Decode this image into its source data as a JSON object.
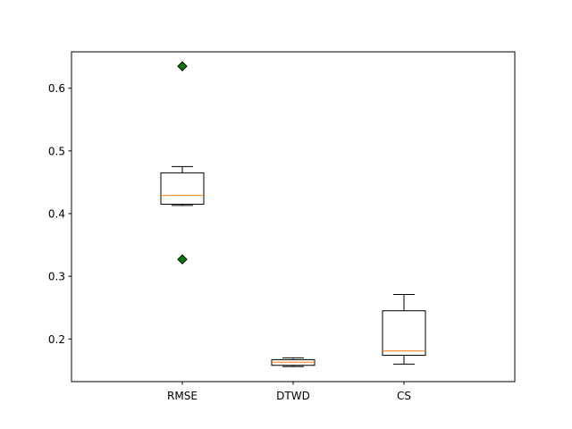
{
  "chart_data": {
    "type": "box",
    "categories": [
      "RMSE",
      "DTWD",
      "CS"
    ],
    "ylim": [
      0.132,
      0.658
    ],
    "yticks": [
      0.2,
      0.3,
      0.4,
      0.5,
      0.6
    ],
    "ytick_labels": [
      "0.2",
      "0.3",
      "0.4",
      "0.5",
      "0.6"
    ],
    "grid": false,
    "boxes": [
      {
        "category": "RMSE",
        "whislo": 0.413,
        "q1": 0.415,
        "med": 0.429,
        "q3": 0.465,
        "whishi": 0.475,
        "fliers": [
          0.635,
          0.327
        ]
      },
      {
        "category": "DTWD",
        "whislo": 0.156,
        "q1": 0.158,
        "med": 0.163,
        "q3": 0.167,
        "whishi": 0.17,
        "fliers": []
      },
      {
        "category": "CS",
        "whislo": 0.16,
        "q1": 0.174,
        "med": 0.181,
        "q3": 0.245,
        "whishi": 0.271,
        "fliers": []
      }
    ],
    "colors": {
      "box": "#000000",
      "median": "#ff7f0e",
      "flier_fill": "#008000",
      "flier_edge": "#000000"
    }
  }
}
